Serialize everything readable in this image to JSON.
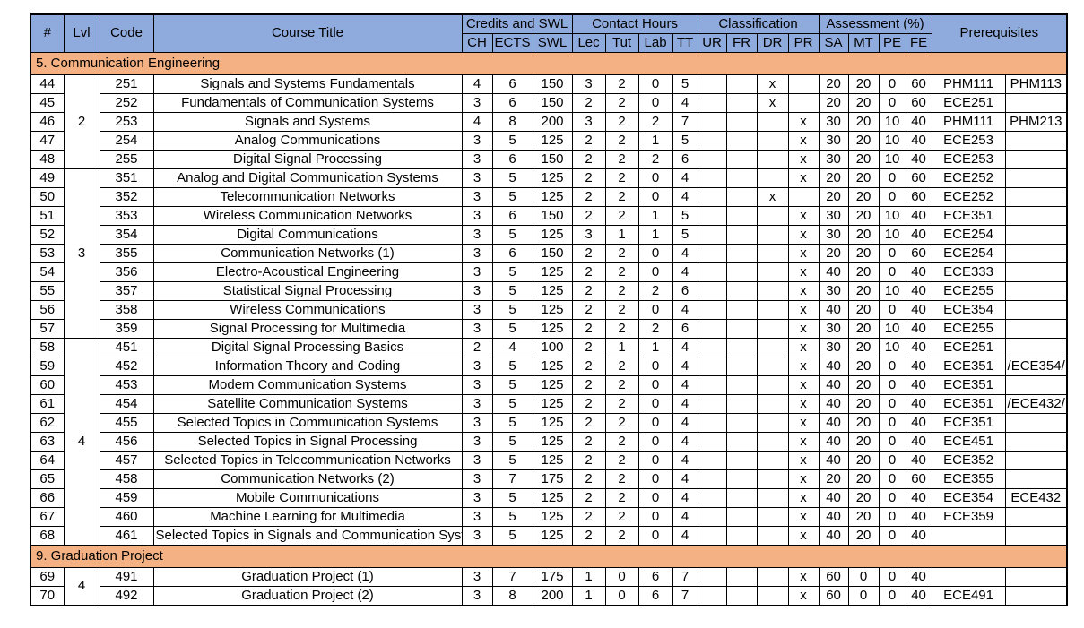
{
  "colors": {
    "header_bg": "#8faadc",
    "section_bg": "#f4b183",
    "border": "#000000",
    "row_bg": "#ffffff"
  },
  "table": {
    "header": {
      "col_num": "#",
      "col_lvl": "Lvl",
      "col_code": "Code",
      "col_title": "Course Title",
      "group_credits": "Credits and SWL",
      "group_contact": "Contact Hours",
      "group_classification": "Classification",
      "group_assessment": "Assessment (%)",
      "col_prerequisites": "Prerequisites",
      "sub": [
        "CH",
        "ECTS",
        "SWL",
        "Lec",
        "Tut",
        "Lab",
        "TT",
        "UR",
        "FR",
        "DR",
        "PR",
        "SA",
        "MT",
        "PE",
        "FE"
      ]
    },
    "sections": [
      {
        "title": "5. Communication Engineering",
        "groups": [
          {
            "level": "2",
            "rows": [
              {
                "num": "44",
                "code": "251",
                "title": "Signals and Systems Fundamentals",
                "ch": "4",
                "ects": "6",
                "swl": "150",
                "lec": "3",
                "tut": "2",
                "lab": "0",
                "tt": "5",
                "ur": "",
                "fr": "",
                "dr": "x",
                "pr": "",
                "sa": "20",
                "mt": "20",
                "pe": "0",
                "fe": "60",
                "prereq1": "PHM111",
                "prereq2": "PHM113"
              },
              {
                "num": "45",
                "code": "252",
                "title": "Fundamentals of Communication Systems",
                "ch": "3",
                "ects": "6",
                "swl": "150",
                "lec": "2",
                "tut": "2",
                "lab": "0",
                "tt": "4",
                "ur": "",
                "fr": "",
                "dr": "x",
                "pr": "",
                "sa": "20",
                "mt": "20",
                "pe": "0",
                "fe": "60",
                "prereq1": "ECE251",
                "prereq2": ""
              },
              {
                "num": "46",
                "code": "253",
                "title": "Signals and Systems",
                "ch": "4",
                "ects": "8",
                "swl": "200",
                "lec": "3",
                "tut": "2",
                "lab": "2",
                "tt": "7",
                "ur": "",
                "fr": "",
                "dr": "",
                "pr": "x",
                "sa": "30",
                "mt": "20",
                "pe": "10",
                "fe": "40",
                "prereq1": "PHM111",
                "prereq2": "PHM213"
              },
              {
                "num": "47",
                "code": "254",
                "title": "Analog Communications",
                "ch": "3",
                "ects": "5",
                "swl": "125",
                "lec": "2",
                "tut": "2",
                "lab": "1",
                "tt": "5",
                "ur": "",
                "fr": "",
                "dr": "",
                "pr": "x",
                "sa": "30",
                "mt": "20",
                "pe": "10",
                "fe": "40",
                "prereq1": "ECE253",
                "prereq2": ""
              },
              {
                "num": "48",
                "code": "255",
                "title": "Digital Signal Processing",
                "ch": "3",
                "ects": "6",
                "swl": "150",
                "lec": "2",
                "tut": "2",
                "lab": "2",
                "tt": "6",
                "ur": "",
                "fr": "",
                "dr": "",
                "pr": "x",
                "sa": "30",
                "mt": "20",
                "pe": "10",
                "fe": "40",
                "prereq1": "ECE253",
                "prereq2": ""
              }
            ]
          },
          {
            "level": "3",
            "rows": [
              {
                "num": "49",
                "code": "351",
                "title": "Analog and Digital Communication Systems",
                "ch": "3",
                "ects": "5",
                "swl": "125",
                "lec": "2",
                "tut": "2",
                "lab": "0",
                "tt": "4",
                "ur": "",
                "fr": "",
                "dr": "",
                "pr": "x",
                "sa": "20",
                "mt": "20",
                "pe": "0",
                "fe": "60",
                "prereq1": "ECE252",
                "prereq2": ""
              },
              {
                "num": "50",
                "code": "352",
                "title": "Telecommunication Networks",
                "ch": "3",
                "ects": "5",
                "swl": "125",
                "lec": "2",
                "tut": "2",
                "lab": "0",
                "tt": "4",
                "ur": "",
                "fr": "",
                "dr": "x",
                "pr": "",
                "sa": "20",
                "mt": "20",
                "pe": "0",
                "fe": "60",
                "prereq1": "ECE252",
                "prereq2": ""
              },
              {
                "num": "51",
                "code": "353",
                "title": "Wireless Communication Networks",
                "ch": "3",
                "ects": "6",
                "swl": "150",
                "lec": "2",
                "tut": "2",
                "lab": "1",
                "tt": "5",
                "ur": "",
                "fr": "",
                "dr": "",
                "pr": "x",
                "sa": "30",
                "mt": "20",
                "pe": "10",
                "fe": "40",
                "prereq1": "ECE351",
                "prereq2": ""
              },
              {
                "num": "52",
                "code": "354",
                "title": "Digital Communications",
                "ch": "3",
                "ects": "5",
                "swl": "125",
                "lec": "3",
                "tut": "1",
                "lab": "1",
                "tt": "5",
                "ur": "",
                "fr": "",
                "dr": "",
                "pr": "x",
                "sa": "30",
                "mt": "20",
                "pe": "10",
                "fe": "40",
                "prereq1": "ECE254",
                "prereq2": ""
              },
              {
                "num": "53",
                "code": "355",
                "title": "Communication Networks (1)",
                "ch": "3",
                "ects": "6",
                "swl": "150",
                "lec": "2",
                "tut": "2",
                "lab": "0",
                "tt": "4",
                "ur": "",
                "fr": "",
                "dr": "",
                "pr": "x",
                "sa": "20",
                "mt": "20",
                "pe": "0",
                "fe": "60",
                "prereq1": "ECE254",
                "prereq2": ""
              },
              {
                "num": "54",
                "code": "356",
                "title": "Electro-Acoustical Engineering",
                "ch": "3",
                "ects": "5",
                "swl": "125",
                "lec": "2",
                "tut": "2",
                "lab": "0",
                "tt": "4",
                "ur": "",
                "fr": "",
                "dr": "",
                "pr": "x",
                "sa": "40",
                "mt": "20",
                "pe": "0",
                "fe": "40",
                "prereq1": "ECE333",
                "prereq2": ""
              },
              {
                "num": "55",
                "code": "357",
                "title": "Statistical Signal Processing",
                "ch": "3",
                "ects": "5",
                "swl": "125",
                "lec": "2",
                "tut": "2",
                "lab": "2",
                "tt": "6",
                "ur": "",
                "fr": "",
                "dr": "",
                "pr": "x",
                "sa": "30",
                "mt": "20",
                "pe": "10",
                "fe": "40",
                "prereq1": "ECE255",
                "prereq2": ""
              },
              {
                "num": "56",
                "code": "358",
                "title": "Wireless Communications",
                "ch": "3",
                "ects": "5",
                "swl": "125",
                "lec": "2",
                "tut": "2",
                "lab": "0",
                "tt": "4",
                "ur": "",
                "fr": "",
                "dr": "",
                "pr": "x",
                "sa": "40",
                "mt": "20",
                "pe": "0",
                "fe": "40",
                "prereq1": "ECE354",
                "prereq2": ""
              },
              {
                "num": "57",
                "code": "359",
                "title": "Signal Processing for Multimedia",
                "ch": "3",
                "ects": "5",
                "swl": "125",
                "lec": "2",
                "tut": "2",
                "lab": "2",
                "tt": "6",
                "ur": "",
                "fr": "",
                "dr": "",
                "pr": "x",
                "sa": "30",
                "mt": "20",
                "pe": "10",
                "fe": "40",
                "prereq1": "ECE255",
                "prereq2": ""
              }
            ]
          },
          {
            "level": "4",
            "rows": [
              {
                "num": "58",
                "code": "451",
                "title": "Digital Signal Processing Basics",
                "ch": "2",
                "ects": "4",
                "swl": "100",
                "lec": "2",
                "tut": "1",
                "lab": "1",
                "tt": "4",
                "ur": "",
                "fr": "",
                "dr": "",
                "pr": "x",
                "sa": "30",
                "mt": "20",
                "pe": "10",
                "fe": "40",
                "prereq1": "ECE251",
                "prereq2": ""
              },
              {
                "num": "59",
                "code": "452",
                "title": "Information Theory and Coding",
                "ch": "3",
                "ects": "5",
                "swl": "125",
                "lec": "2",
                "tut": "2",
                "lab": "0",
                "tt": "4",
                "ur": "",
                "fr": "",
                "dr": "",
                "pr": "x",
                "sa": "40",
                "mt": "20",
                "pe": "0",
                "fe": "40",
                "prereq1": "ECE351",
                "prereq2": "/ECE354/"
              },
              {
                "num": "60",
                "code": "453",
                "title": "Modern Communication Systems",
                "ch": "3",
                "ects": "5",
                "swl": "125",
                "lec": "2",
                "tut": "2",
                "lab": "0",
                "tt": "4",
                "ur": "",
                "fr": "",
                "dr": "",
                "pr": "x",
                "sa": "40",
                "mt": "20",
                "pe": "0",
                "fe": "40",
                "prereq1": "ECE351",
                "prereq2": ""
              },
              {
                "num": "61",
                "code": "454",
                "title": "Satellite Communication Systems",
                "ch": "3",
                "ects": "5",
                "swl": "125",
                "lec": "2",
                "tut": "2",
                "lab": "0",
                "tt": "4",
                "ur": "",
                "fr": "",
                "dr": "",
                "pr": "x",
                "sa": "40",
                "mt": "20",
                "pe": "0",
                "fe": "40",
                "prereq1": "ECE351",
                "prereq2": "/ECE432/"
              },
              {
                "num": "62",
                "code": "455",
                "title": "Selected Topics in Communication Systems",
                "ch": "3",
                "ects": "5",
                "swl": "125",
                "lec": "2",
                "tut": "2",
                "lab": "0",
                "tt": "4",
                "ur": "",
                "fr": "",
                "dr": "",
                "pr": "x",
                "sa": "40",
                "mt": "20",
                "pe": "0",
                "fe": "40",
                "prereq1": "ECE351",
                "prereq2": ""
              },
              {
                "num": "63",
                "code": "456",
                "title": "Selected Topics in Signal Processing",
                "ch": "3",
                "ects": "5",
                "swl": "125",
                "lec": "2",
                "tut": "2",
                "lab": "0",
                "tt": "4",
                "ur": "",
                "fr": "",
                "dr": "",
                "pr": "x",
                "sa": "40",
                "mt": "20",
                "pe": "0",
                "fe": "40",
                "prereq1": "ECE451",
                "prereq2": ""
              },
              {
                "num": "64",
                "code": "457",
                "title": "Selected Topics in Telecommunication Networks",
                "ch": "3",
                "ects": "5",
                "swl": "125",
                "lec": "2",
                "tut": "2",
                "lab": "0",
                "tt": "4",
                "ur": "",
                "fr": "",
                "dr": "",
                "pr": "x",
                "sa": "40",
                "mt": "20",
                "pe": "0",
                "fe": "40",
                "prereq1": "ECE352",
                "prereq2": ""
              },
              {
                "num": "65",
                "code": "458",
                "title": "Communication Networks (2)",
                "ch": "3",
                "ects": "7",
                "swl": "175",
                "lec": "2",
                "tut": "2",
                "lab": "0",
                "tt": "4",
                "ur": "",
                "fr": "",
                "dr": "",
                "pr": "x",
                "sa": "20",
                "mt": "20",
                "pe": "0",
                "fe": "60",
                "prereq1": "ECE355",
                "prereq2": ""
              },
              {
                "num": "66",
                "code": "459",
                "title": "Mobile Communications",
                "ch": "3",
                "ects": "5",
                "swl": "125",
                "lec": "2",
                "tut": "2",
                "lab": "0",
                "tt": "4",
                "ur": "",
                "fr": "",
                "dr": "",
                "pr": "x",
                "sa": "40",
                "mt": "20",
                "pe": "0",
                "fe": "40",
                "prereq1": "ECE354",
                "prereq2": "ECE432"
              },
              {
                "num": "67",
                "code": "460",
                "title": "Machine Learning for Multimedia",
                "ch": "3",
                "ects": "5",
                "swl": "125",
                "lec": "2",
                "tut": "2",
                "lab": "0",
                "tt": "4",
                "ur": "",
                "fr": "",
                "dr": "",
                "pr": "x",
                "sa": "40",
                "mt": "20",
                "pe": "0",
                "fe": "40",
                "prereq1": "ECE359",
                "prereq2": ""
              },
              {
                "num": "68",
                "code": "461",
                "title": "Selected Topics in Signals and Communication Systems",
                "ch": "3",
                "ects": "5",
                "swl": "125",
                "lec": "2",
                "tut": "2",
                "lab": "0",
                "tt": "4",
                "ur": "",
                "fr": "",
                "dr": "",
                "pr": "x",
                "sa": "40",
                "mt": "20",
                "pe": "0",
                "fe": "40",
                "prereq1": "",
                "prereq2": ""
              }
            ]
          }
        ]
      },
      {
        "title": "9. Graduation Project",
        "groups": [
          {
            "level": "4",
            "rows": [
              {
                "num": "69",
                "code": "491",
                "title": "Graduation Project (1)",
                "ch": "3",
                "ects": "7",
                "swl": "175",
                "lec": "1",
                "tut": "0",
                "lab": "6",
                "tt": "7",
                "ur": "",
                "fr": "",
                "dr": "",
                "pr": "x",
                "sa": "60",
                "mt": "0",
                "pe": "0",
                "fe": "40",
                "prereq1": "",
                "prereq2": ""
              },
              {
                "num": "70",
                "code": "492",
                "title": "Graduation Project (2)",
                "ch": "3",
                "ects": "8",
                "swl": "200",
                "lec": "1",
                "tut": "0",
                "lab": "6",
                "tt": "7",
                "ur": "",
                "fr": "",
                "dr": "",
                "pr": "x",
                "sa": "60",
                "mt": "0",
                "pe": "0",
                "fe": "40",
                "prereq1": "ECE491",
                "prereq2": ""
              }
            ]
          }
        ]
      }
    ]
  }
}
